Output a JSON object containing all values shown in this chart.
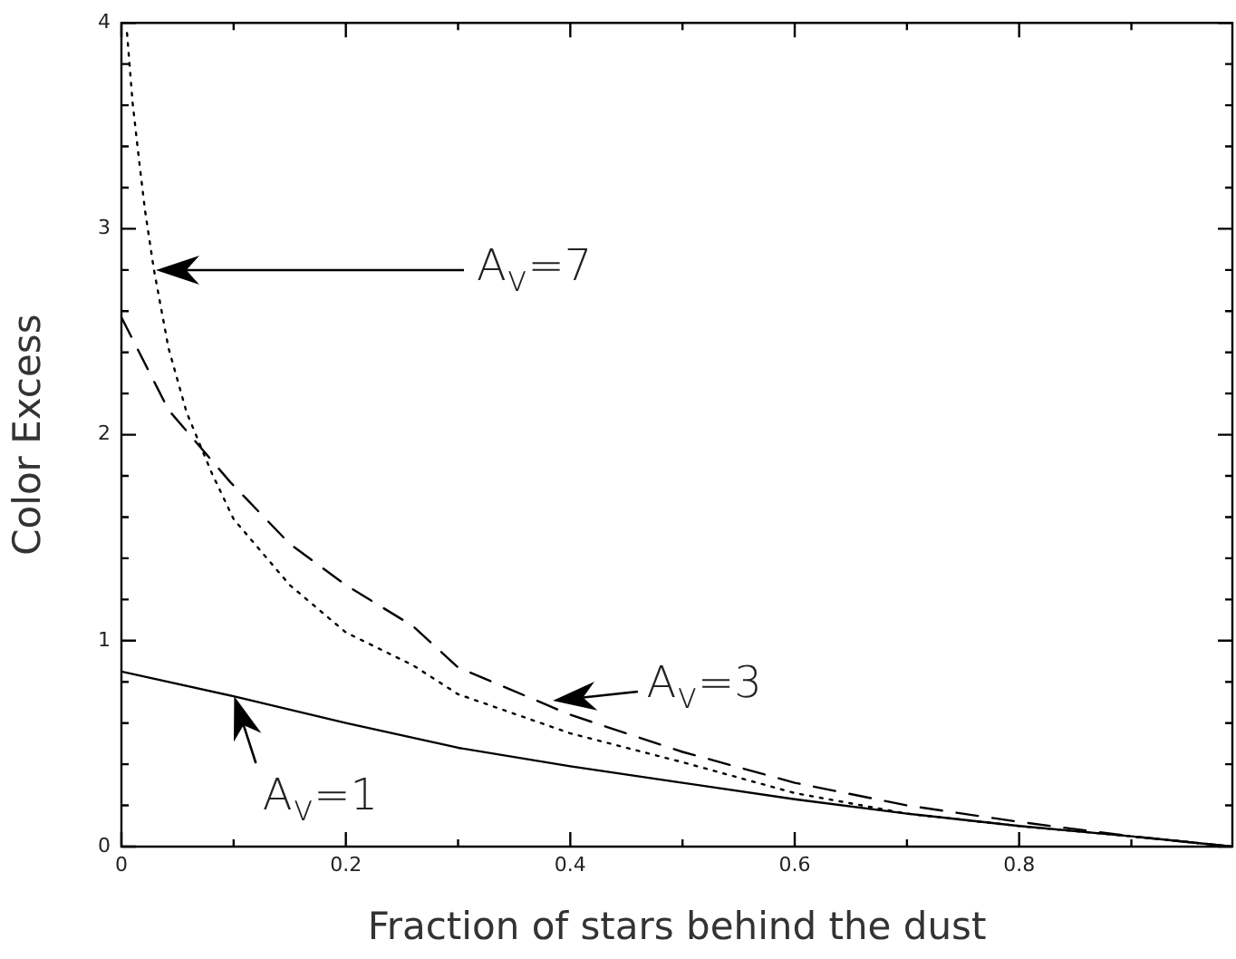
{
  "chart_data": {
    "type": "line",
    "xlabel": "Fraction of stars behind the dust",
    "ylabel": "Color Excess",
    "xlim": [
      0,
      0.99
    ],
    "ylim": [
      0,
      4
    ],
    "xticks": [
      0,
      {
        "value": 0.1,
        "label": null
      },
      0.2,
      {
        "value": 0.3,
        "label": null
      },
      0.4,
      {
        "value": 0.5,
        "label": null
      },
      0.6,
      {
        "value": 0.7,
        "label": null
      },
      0.8,
      {
        "value": 0.9,
        "label": null
      }
    ],
    "yticks": [
      0,
      {
        "value": 0.2,
        "label": null
      },
      {
        "value": 0.4,
        "label": null
      },
      {
        "value": 0.6,
        "label": null
      },
      {
        "value": 0.8,
        "label": null
      },
      1,
      {
        "value": 1.2,
        "label": null
      },
      {
        "value": 1.4,
        "label": null
      },
      {
        "value": 1.6,
        "label": null
      },
      {
        "value": 1.8,
        "label": null
      },
      2,
      {
        "value": 2.2,
        "label": null
      },
      {
        "value": 2.4,
        "label": null
      },
      {
        "value": 2.6,
        "label": null
      },
      {
        "value": 2.8,
        "label": null
      },
      3,
      {
        "value": 3.2,
        "label": null
      },
      {
        "value": 3.4,
        "label": null
      },
      {
        "value": 3.6,
        "label": null
      },
      {
        "value": 3.8,
        "label": null
      },
      4
    ],
    "grid": false,
    "legend": false,
    "marker": "none",
    "series": [
      {
        "color": "#000000",
        "line_style": "solid",
        "x": [
          0,
          0.1,
          0.2,
          0.3,
          0.4,
          0.5,
          0.6,
          0.7,
          0.8,
          0.9,
          0.99
        ],
        "values": [
          0.85,
          0.73,
          0.6,
          0.48,
          0.39,
          0.31,
          0.23,
          0.16,
          0.1,
          0.05,
          0
        ]
      },
      {
        "color": "#000000",
        "line_style": "dashed",
        "x": [
          0,
          0.042,
          0.097,
          0.15,
          0.2,
          0.26,
          0.3,
          0.4,
          0.5,
          0.6,
          0.7,
          0.8,
          0.9,
          0.99
        ],
        "values": [
          2.57,
          2.12,
          1.77,
          1.47,
          1.27,
          1.07,
          0.87,
          0.64,
          0.46,
          0.31,
          0.2,
          0.12,
          0.05,
          0
        ]
      },
      {
        "color": "#000000",
        "line_style": "dotted",
        "x": [
          0.005,
          0.01,
          0.016,
          0.021,
          0.029,
          0.042,
          0.058,
          0.08,
          0.1,
          0.15,
          0.2,
          0.26,
          0.3,
          0.4,
          0.5,
          0.6,
          0.7,
          0.8,
          0.9,
          0.99
        ],
        "values": [
          3.95,
          3.61,
          3.32,
          3.09,
          2.8,
          2.42,
          2.11,
          1.82,
          1.59,
          1.27,
          1.04,
          0.88,
          0.74,
          0.55,
          0.41,
          0.26,
          0.16,
          0.1,
          0.05,
          0
        ]
      }
    ],
    "annotations": [
      "A$_{v}$=7",
      {
        "text": "A$_{v}$=3",
        "x": 0.384,
        "y": 0.71
      },
      {
        "text": "A$_{v}$=1",
        "x": 0.1,
        "y": 0.73
      }
    ]
  }
}
